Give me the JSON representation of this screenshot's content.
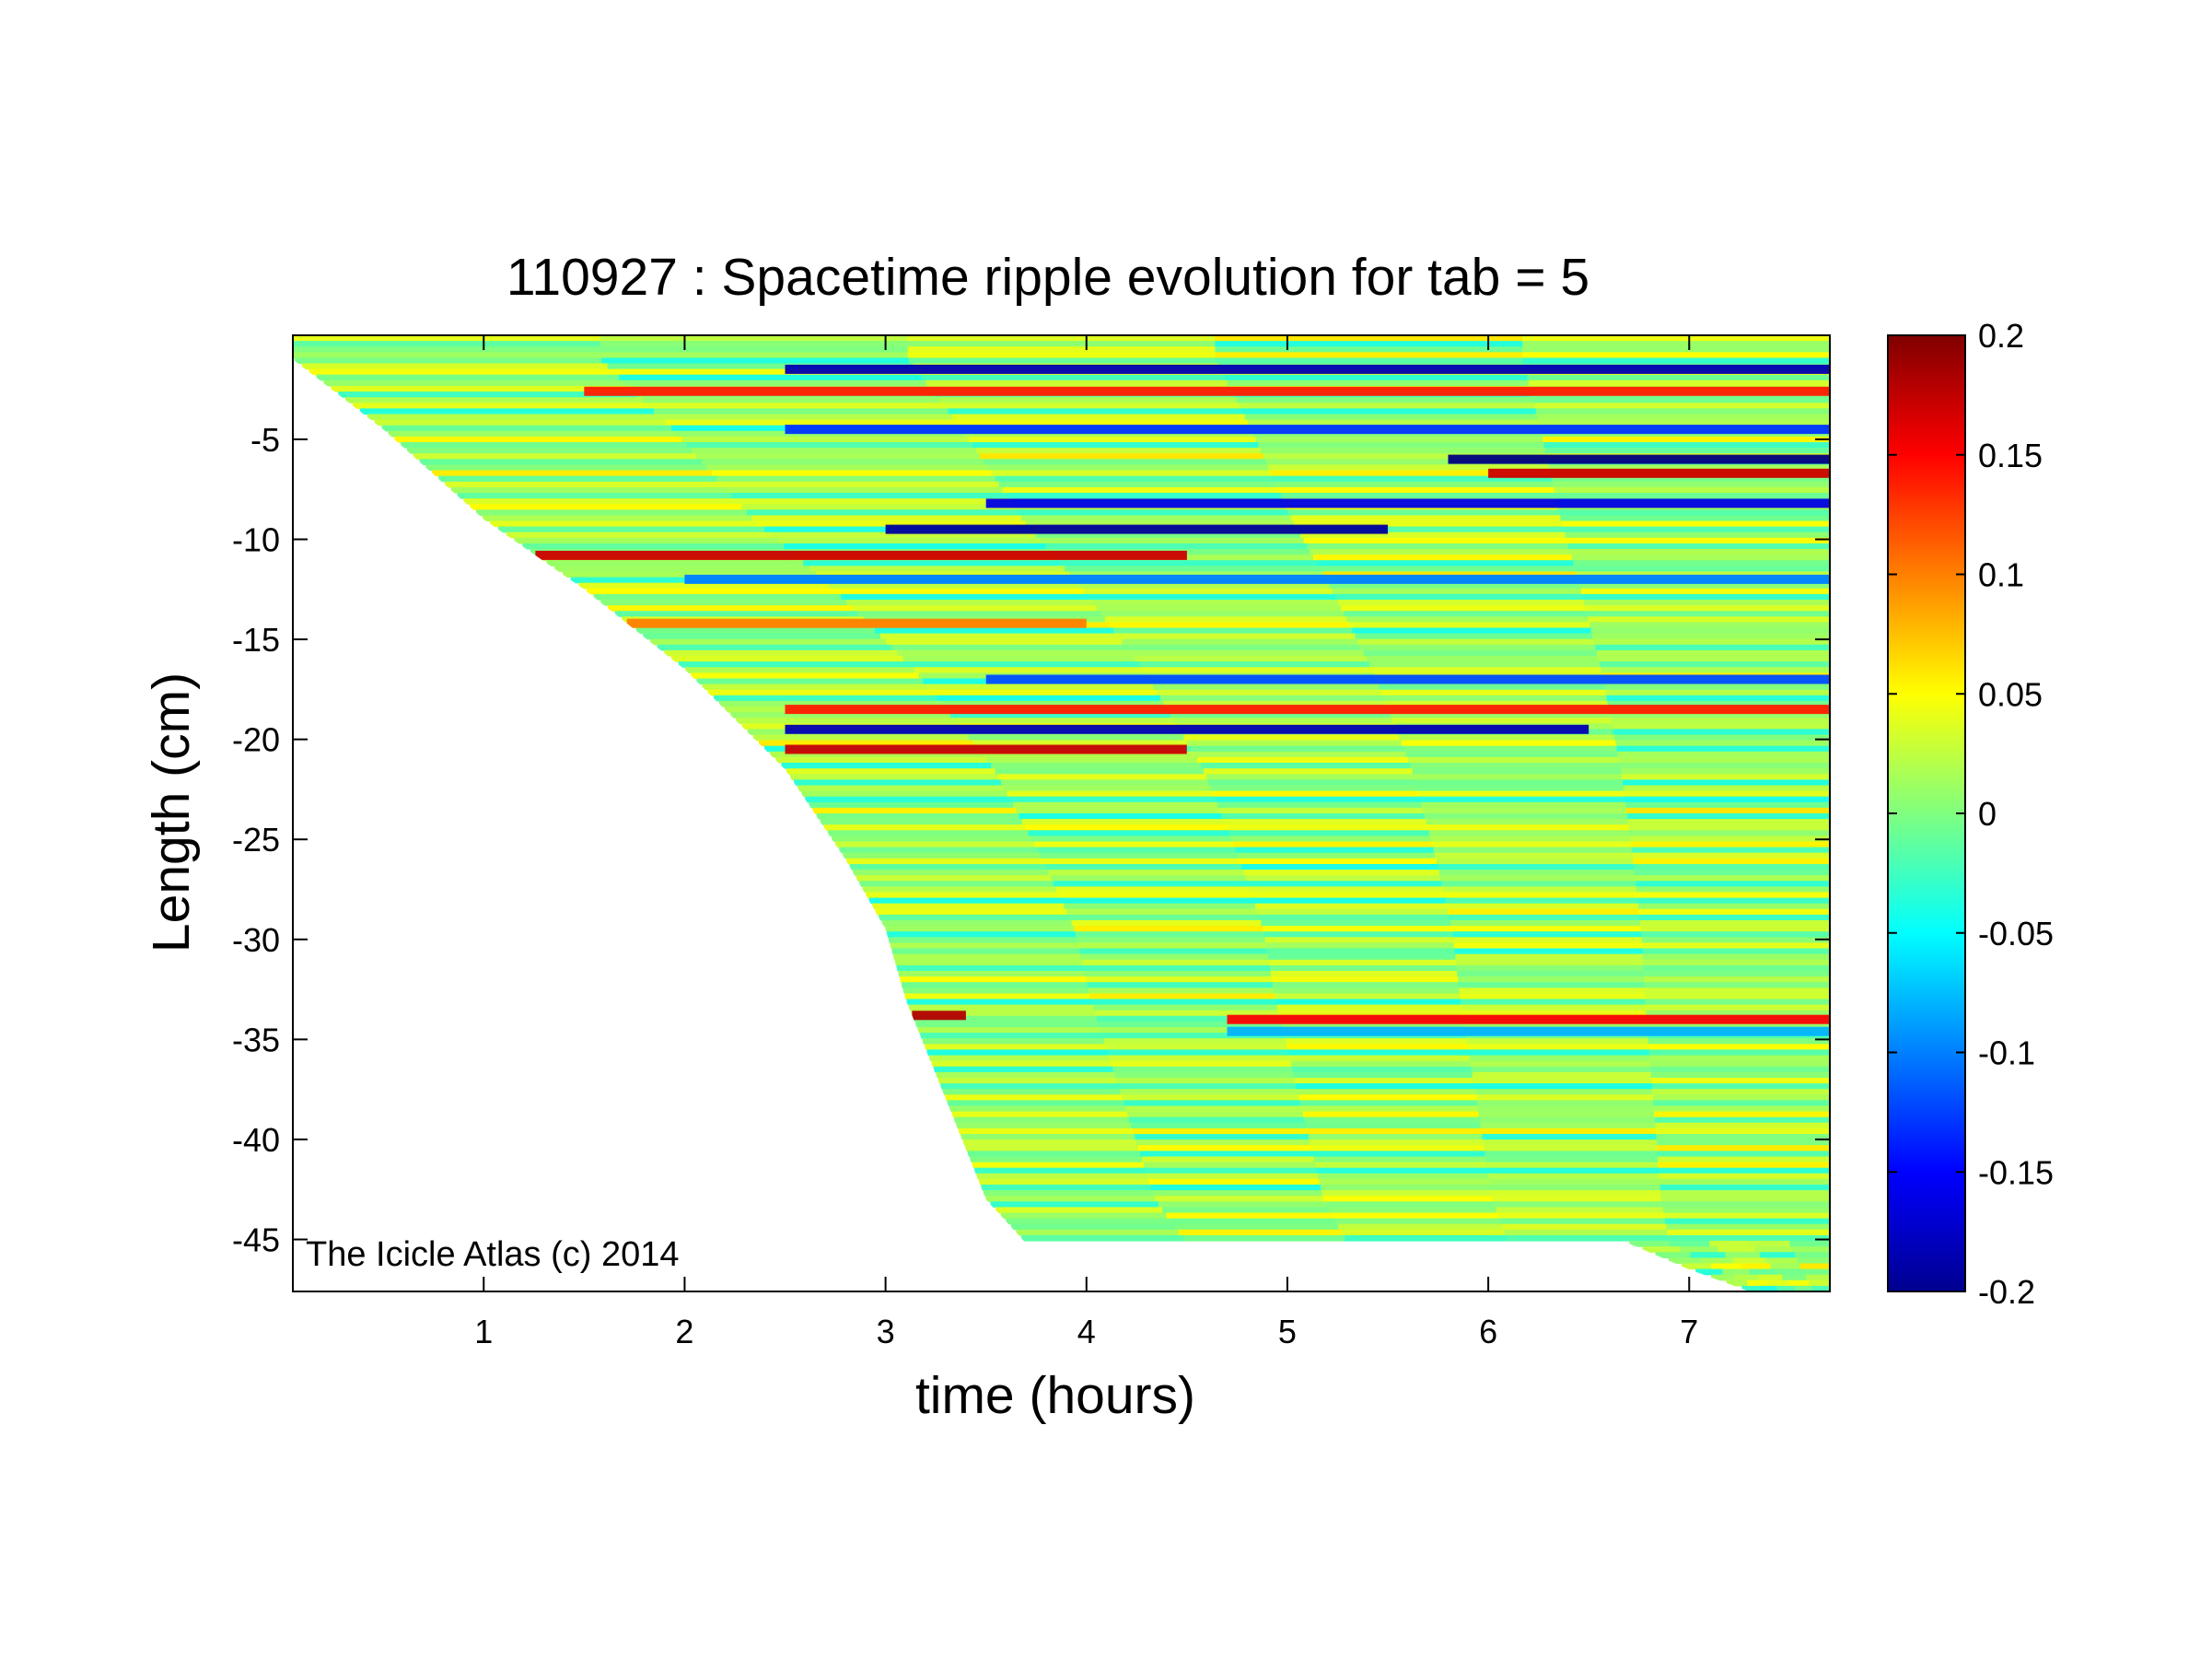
{
  "chart_data": {
    "type": "heatmap",
    "title": "110927 : Spacetime ripple evolution for tab = 5",
    "xlabel": "time (hours)",
    "ylabel": "Length (cm)",
    "xlim": [
      0.05,
      7.7
    ],
    "ylim": [
      -47.6,
      0.2
    ],
    "x_ticks": [
      1,
      2,
      3,
      4,
      5,
      6,
      7
    ],
    "y_ticks": [
      -5,
      -10,
      -15,
      -20,
      -25,
      -30,
      -35,
      -40,
      -45
    ],
    "colorbar": {
      "colormap": "jet",
      "range": [
        -0.2,
        0.2
      ],
      "ticks": [
        0.2,
        0.15,
        0.1,
        0.05,
        0,
        -0.05,
        -0.1,
        -0.15,
        -0.2
      ]
    },
    "boundary_front": [
      {
        "t": 0.05,
        "L": -1.0
      },
      {
        "t": 0.5,
        "L": -4.5
      },
      {
        "t": 1.0,
        "L": -9.0
      },
      {
        "t": 1.5,
        "L": -12.5
      },
      {
        "t": 2.0,
        "L": -16.5
      },
      {
        "t": 2.5,
        "L": -21.5
      },
      {
        "t": 2.8,
        "L": -26.0
      },
      {
        "t": 3.0,
        "L": -29.5
      },
      {
        "t": 3.1,
        "L": -33.0
      },
      {
        "t": 3.3,
        "L": -38.0
      },
      {
        "t": 3.5,
        "L": -43.0
      },
      {
        "t": 3.7,
        "L": -45.2
      },
      {
        "t": 6.7,
        "L": -45.2
      },
      {
        "t": 7.0,
        "L": -46.5
      },
      {
        "t": 7.3,
        "L": -47.6
      }
    ],
    "strong_bands": [
      {
        "L": -1.5,
        "t_start": 2.5,
        "t_end": 7.7,
        "value": -0.18
      },
      {
        "L": -2.6,
        "t_start": 1.5,
        "t_end": 7.7,
        "value": 0.14
      },
      {
        "L": -4.5,
        "t_start": 2.5,
        "t_end": 7.7,
        "value": -0.13
      },
      {
        "L": -6.0,
        "t_start": 5.8,
        "t_end": 7.7,
        "value": -0.2
      },
      {
        "L": -6.7,
        "t_start": 6.0,
        "t_end": 7.7,
        "value": 0.17
      },
      {
        "L": -8.2,
        "t_start": 3.5,
        "t_end": 7.7,
        "value": -0.16
      },
      {
        "L": -9.5,
        "t_start": 3.0,
        "t_end": 5.5,
        "value": -0.19
      },
      {
        "L": -10.8,
        "t_start": 1.0,
        "t_end": 4.5,
        "value": 0.17
      },
      {
        "L": -12.0,
        "t_start": 2.0,
        "t_end": 7.7,
        "value": -0.1
      },
      {
        "L": -14.2,
        "t_start": 1.5,
        "t_end": 4.0,
        "value": 0.1
      },
      {
        "L": -17.0,
        "t_start": 3.5,
        "t_end": 7.7,
        "value": -0.12
      },
      {
        "L": -18.5,
        "t_start": 2.5,
        "t_end": 7.7,
        "value": 0.14
      },
      {
        "L": -19.5,
        "t_start": 2.5,
        "t_end": 6.5,
        "value": -0.18
      },
      {
        "L": -20.5,
        "t_start": 2.5,
        "t_end": 4.5,
        "value": 0.17
      },
      {
        "L": -33.8,
        "t_start": 3.1,
        "t_end": 3.4,
        "value": 0.18
      },
      {
        "L": -34.0,
        "t_start": 4.7,
        "t_end": 7.7,
        "value": 0.15
      },
      {
        "L": -34.6,
        "t_start": 4.7,
        "t_end": 7.7,
        "value": -0.08
      }
    ],
    "annotation": "The Icicle Atlas (c) 2014"
  }
}
